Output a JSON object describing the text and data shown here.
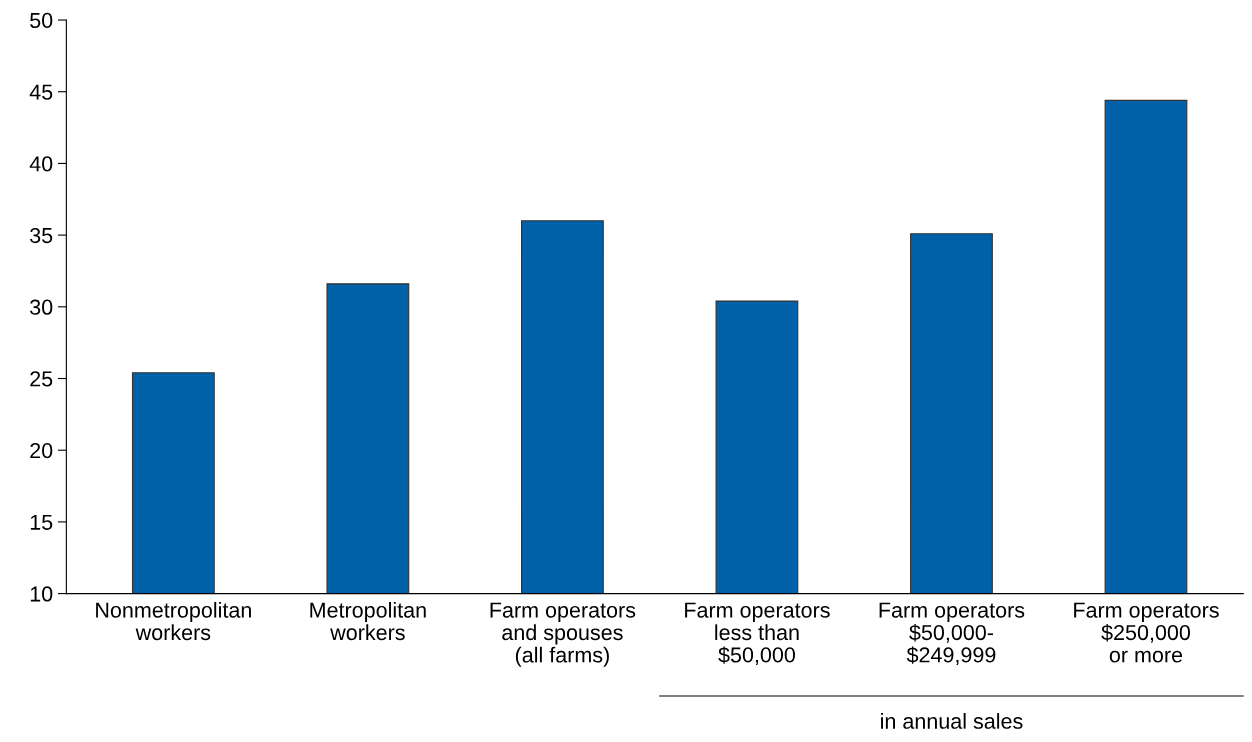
{
  "chart_data": {
    "type": "bar",
    "categories": [
      "Nonmetropolitan\nworkers",
      "Metropolitan\nworkers",
      "Farm operators\nand spouses\n(all farms)",
      "Farm operators\nless than\n$50,000",
      "Farm operators\n$50,000-\n$249,999",
      "Farm operators\n$250,000\nor more"
    ],
    "values": [
      25.4,
      31.6,
      36.0,
      30.4,
      35.1,
      44.4
    ],
    "color": "#0060a8",
    "ylim": [
      10,
      50
    ],
    "yticks": [
      10,
      15,
      20,
      25,
      30,
      35,
      40,
      45,
      50
    ],
    "grid": false,
    "legend": false,
    "annotations": [
      "in annual sales"
    ]
  }
}
